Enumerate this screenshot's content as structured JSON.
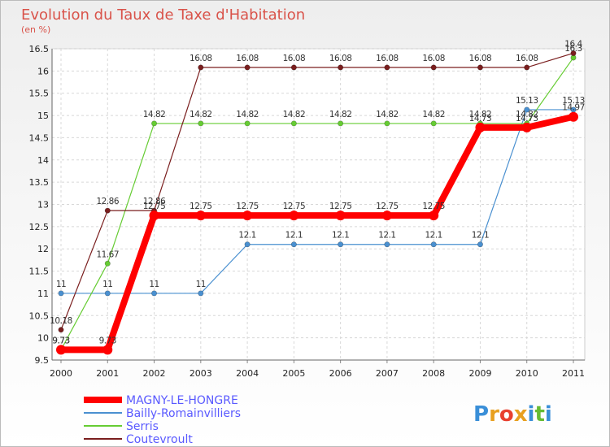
{
  "chart_data": {
    "type": "line",
    "title": "Evolution du Taux de Taxe d'Habitation",
    "subtitle": "(en %)",
    "x": [
      "2000",
      "2001",
      "2002",
      "2003",
      "2004",
      "2005",
      "2006",
      "2007",
      "2008",
      "2009",
      "2010",
      "2011"
    ],
    "ylim": [
      9.5,
      16.5
    ],
    "yticks": [
      9.5,
      10,
      10.5,
      11,
      11.5,
      12,
      12.5,
      13,
      13.5,
      14,
      14.5,
      15,
      15.5,
      16,
      16.5
    ],
    "ytick_labels": [
      "9.5",
      "10",
      "10.5",
      "11",
      "11.5",
      "12",
      "12.5",
      "13",
      "13.5",
      "14",
      "14.5",
      "15",
      "15.5",
      "16",
      "16.5"
    ],
    "grid": true,
    "legend": "bottom-left",
    "series": [
      {
        "name": "MAGNY-LE-HONGRE",
        "color": "#ff0000",
        "values": [
          9.73,
          9.73,
          12.75,
          12.75,
          12.75,
          12.75,
          12.75,
          12.75,
          12.75,
          14.73,
          14.73,
          14.97
        ],
        "labels": [
          "9.73",
          "9.73",
          "12.75",
          "12.75",
          "12.75",
          "12.75",
          "12.75",
          "12.75",
          "12.75",
          "14.73",
          "14.73",
          "14.97"
        ]
      },
      {
        "name": "Bailly-Romainvilliers",
        "color": "#4a90d0",
        "values": [
          11,
          11,
          11,
          11,
          12.1,
          12.1,
          12.1,
          12.1,
          12.1,
          12.1,
          15.13,
          15.13
        ],
        "labels": [
          "11",
          "11",
          "11",
          "11",
          "12.1",
          "12.1",
          "12.1",
          "12.1",
          "12.1",
          "12.1",
          "15.13",
          "15.13"
        ]
      },
      {
        "name": "Serris",
        "color": "#66cc33",
        "values": [
          9.73,
          11.67,
          14.82,
          14.82,
          14.82,
          14.82,
          14.82,
          14.82,
          14.82,
          14.82,
          14.82,
          16.3
        ],
        "labels": [
          "9.73",
          "11.67",
          "14.82",
          "14.82",
          "14.82",
          "14.82",
          "14.82",
          "14.82",
          "14.82",
          "14.82",
          "14.82",
          "16.3"
        ]
      },
      {
        "name": "Coutevroult",
        "color": "#7a1e1e",
        "values": [
          10.18,
          12.86,
          12.86,
          16.08,
          16.08,
          16.08,
          16.08,
          16.08,
          16.08,
          16.08,
          16.08,
          16.4
        ],
        "labels": [
          "10.18",
          "12.86",
          "12.86",
          "16.08",
          "16.08",
          "16.08",
          "16.08",
          "16.08",
          "16.08",
          "16.08",
          "16.08",
          "16.4"
        ]
      }
    ]
  },
  "brand": {
    "letters": [
      {
        "ch": "P",
        "color": "#3a8fd8"
      },
      {
        "ch": "r",
        "color": "#e8a020"
      },
      {
        "ch": "o",
        "color": "#e84030"
      },
      {
        "ch": "x",
        "color": "#e8a020"
      },
      {
        "ch": "i",
        "color": "#3a8fd8"
      },
      {
        "ch": "t",
        "color": "#66bb33"
      },
      {
        "ch": "i",
        "color": "#3a8fd8"
      }
    ]
  }
}
